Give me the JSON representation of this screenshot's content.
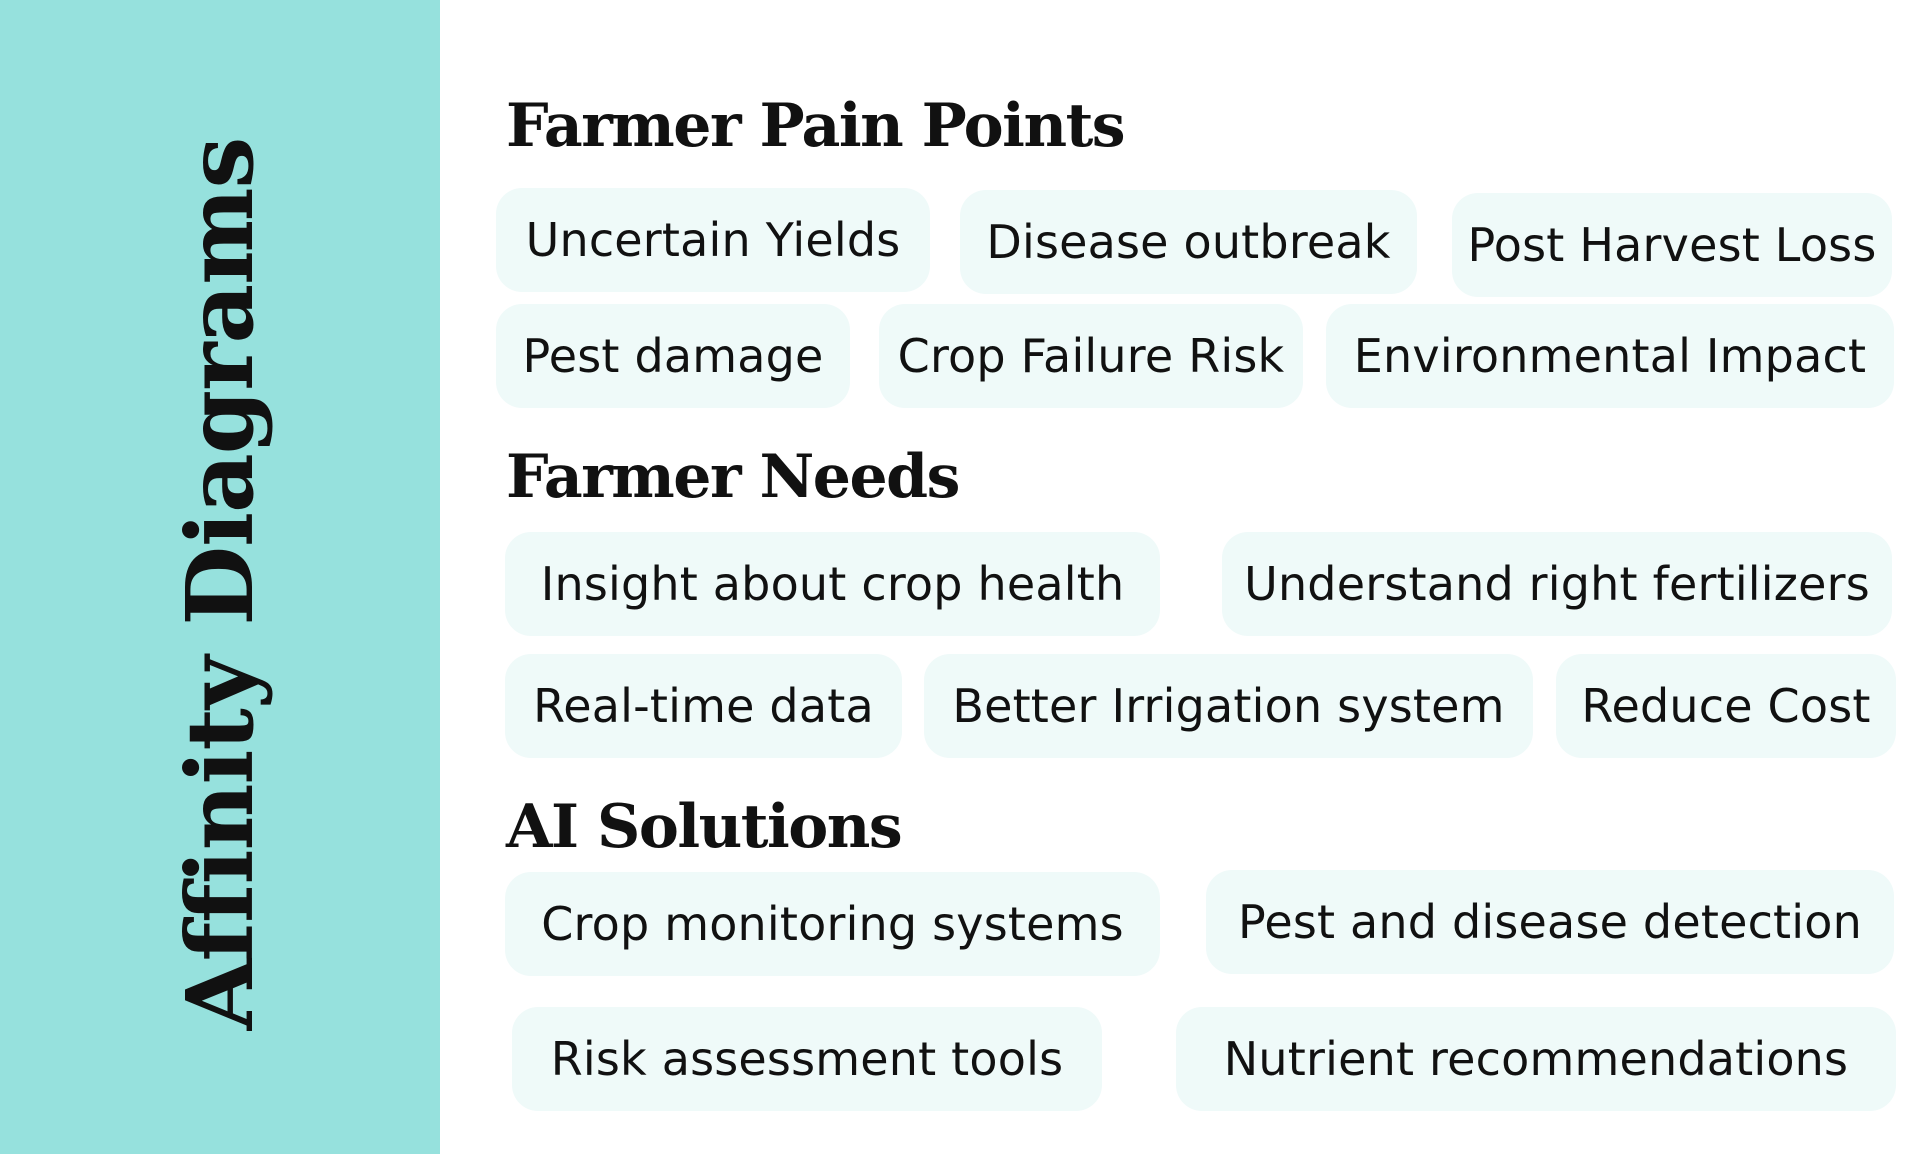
{
  "sidebar": {
    "title": "Affinity Diagrams"
  },
  "sections": [
    {
      "heading": "Farmer Pain Points",
      "notes": [
        "Uncertain Yields",
        "Disease outbreak",
        "Post Harvest Loss",
        "Pest damage",
        "Crop Failure Risk",
        "Environmental Impact"
      ]
    },
    {
      "heading": "Farmer Needs",
      "notes": [
        "Insight about crop health",
        "Understand right fertilizers",
        "Real-time data",
        "Better Irrigation system",
        "Reduce Cost"
      ]
    },
    {
      "heading": "AI Solutions",
      "notes": [
        "Crop monitoring systems",
        "Pest and disease detection",
        "Risk assessment tools",
        "Nutrient recommendations"
      ]
    }
  ],
  "colors": {
    "sidebar": "#96e1dd",
    "note": "#effaf9",
    "text": "#111111"
  }
}
